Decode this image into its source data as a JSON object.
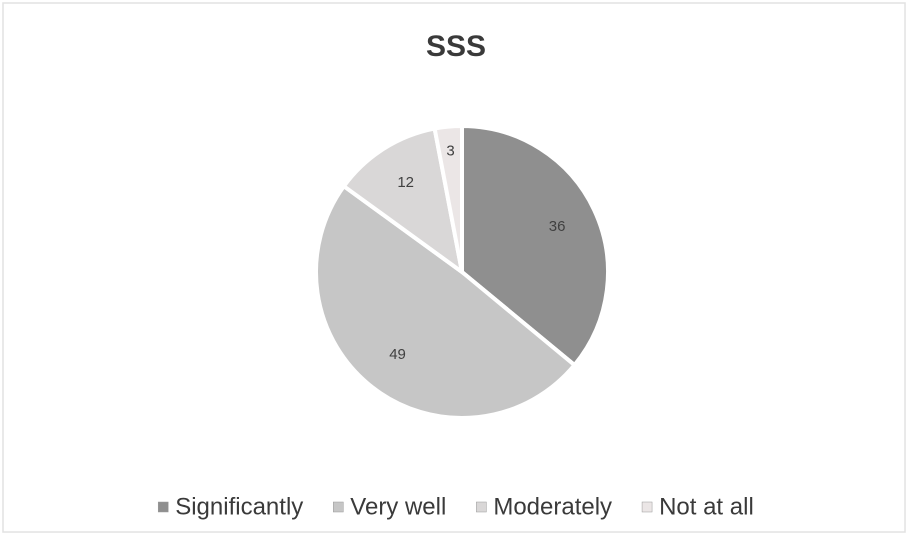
{
  "chart_data": {
    "type": "pie",
    "title": "SSS",
    "categories": [
      "Significantly",
      "Very well",
      "Moderately",
      "Not at all"
    ],
    "values": [
      36,
      49,
      12,
      3
    ],
    "colors": [
      "#8f8f8f",
      "#c6c6c6",
      "#d9d7d7",
      "#ebe6e6"
    ],
    "legend": "bottom"
  }
}
